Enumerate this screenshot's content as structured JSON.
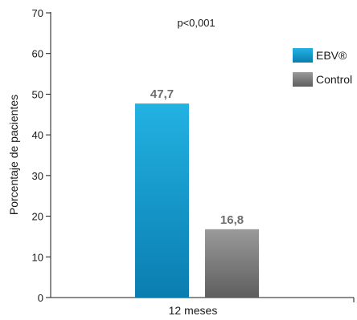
{
  "chart_data": {
    "type": "bar",
    "categories": [
      "12 meses"
    ],
    "series": [
      {
        "name": "EBV®",
        "values": [
          47.7
        ],
        "color": "#0a8fc2",
        "value_label": "47,7"
      },
      {
        "name": "Control",
        "values": [
          16.8
        ],
        "color": "#7a7a7a",
        "value_label": "16,8"
      }
    ],
    "ylabel": "Porcentaje de pacientes",
    "xlabel": "",
    "ylim": [
      0,
      70
    ],
    "yticks": [
      0,
      10,
      20,
      30,
      40,
      50,
      60,
      70
    ],
    "ytick_labels": [
      "0",
      "10",
      "20",
      "30",
      "40",
      "50",
      "60",
      "70"
    ],
    "annotation": "p<0,001",
    "legend_position": "right",
    "grid": false
  }
}
